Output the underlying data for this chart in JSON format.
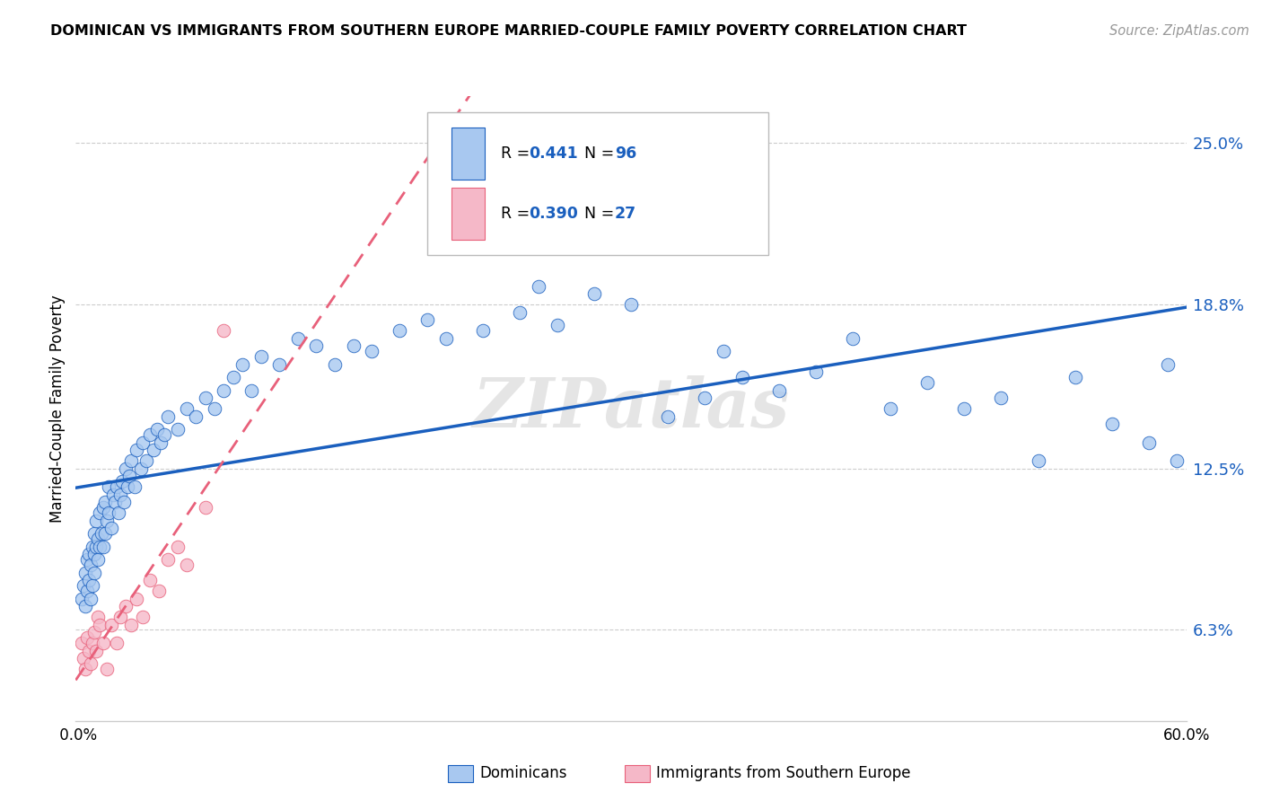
{
  "title": "DOMINICAN VS IMMIGRANTS FROM SOUTHERN EUROPE MARRIED-COUPLE FAMILY POVERTY CORRELATION CHART",
  "source": "Source: ZipAtlas.com",
  "ylabel": "Married-Couple Family Poverty",
  "yticks": [
    0.063,
    0.125,
    0.188,
    0.25
  ],
  "ytick_labels": [
    "6.3%",
    "12.5%",
    "18.8%",
    "25.0%"
  ],
  "xmin": 0.0,
  "xmax": 0.6,
  "ymin": 0.028,
  "ymax": 0.268,
  "legend_label1": "Dominicans",
  "legend_label2": "Immigrants from Southern Europe",
  "blue_color": "#a8c8f0",
  "pink_color": "#f5b8c8",
  "blue_line_color": "#1a5fbe",
  "pink_line_color": "#e8607a",
  "watermark": "ZIPatlas",
  "blue_x": [
    0.003,
    0.004,
    0.005,
    0.005,
    0.006,
    0.006,
    0.007,
    0.007,
    0.008,
    0.008,
    0.009,
    0.009,
    0.01,
    0.01,
    0.01,
    0.011,
    0.011,
    0.012,
    0.012,
    0.013,
    0.013,
    0.014,
    0.015,
    0.015,
    0.016,
    0.016,
    0.017,
    0.018,
    0.018,
    0.019,
    0.02,
    0.021,
    0.022,
    0.023,
    0.024,
    0.025,
    0.026,
    0.027,
    0.028,
    0.029,
    0.03,
    0.032,
    0.033,
    0.035,
    0.036,
    0.038,
    0.04,
    0.042,
    0.044,
    0.046,
    0.048,
    0.05,
    0.055,
    0.06,
    0.065,
    0.07,
    0.075,
    0.08,
    0.085,
    0.09,
    0.095,
    0.1,
    0.11,
    0.12,
    0.13,
    0.14,
    0.15,
    0.16,
    0.175,
    0.19,
    0.2,
    0.22,
    0.24,
    0.26,
    0.28,
    0.3,
    0.32,
    0.34,
    0.36,
    0.38,
    0.4,
    0.42,
    0.44,
    0.46,
    0.48,
    0.5,
    0.52,
    0.54,
    0.56,
    0.58,
    0.59,
    0.595,
    0.3,
    0.28,
    0.35,
    0.25
  ],
  "blue_y": [
    0.075,
    0.08,
    0.072,
    0.085,
    0.078,
    0.09,
    0.082,
    0.092,
    0.075,
    0.088,
    0.08,
    0.095,
    0.085,
    0.092,
    0.1,
    0.095,
    0.105,
    0.09,
    0.098,
    0.095,
    0.108,
    0.1,
    0.095,
    0.11,
    0.1,
    0.112,
    0.105,
    0.108,
    0.118,
    0.102,
    0.115,
    0.112,
    0.118,
    0.108,
    0.115,
    0.12,
    0.112,
    0.125,
    0.118,
    0.122,
    0.128,
    0.118,
    0.132,
    0.125,
    0.135,
    0.128,
    0.138,
    0.132,
    0.14,
    0.135,
    0.138,
    0.145,
    0.14,
    0.148,
    0.145,
    0.152,
    0.148,
    0.155,
    0.16,
    0.165,
    0.155,
    0.168,
    0.165,
    0.175,
    0.172,
    0.165,
    0.172,
    0.17,
    0.178,
    0.182,
    0.175,
    0.178,
    0.185,
    0.18,
    0.192,
    0.188,
    0.145,
    0.152,
    0.16,
    0.155,
    0.162,
    0.175,
    0.148,
    0.158,
    0.148,
    0.152,
    0.128,
    0.16,
    0.142,
    0.135,
    0.165,
    0.128,
    0.23,
    0.215,
    0.17,
    0.195
  ],
  "pink_x": [
    0.003,
    0.004,
    0.005,
    0.006,
    0.007,
    0.008,
    0.009,
    0.01,
    0.011,
    0.012,
    0.013,
    0.015,
    0.017,
    0.019,
    0.022,
    0.024,
    0.027,
    0.03,
    0.033,
    0.036,
    0.04,
    0.045,
    0.05,
    0.055,
    0.06,
    0.07,
    0.08
  ],
  "pink_y": [
    0.058,
    0.052,
    0.048,
    0.06,
    0.055,
    0.05,
    0.058,
    0.062,
    0.055,
    0.068,
    0.065,
    0.058,
    0.048,
    0.065,
    0.058,
    0.068,
    0.072,
    0.065,
    0.075,
    0.068,
    0.082,
    0.078,
    0.09,
    0.095,
    0.088,
    0.11,
    0.178
  ]
}
